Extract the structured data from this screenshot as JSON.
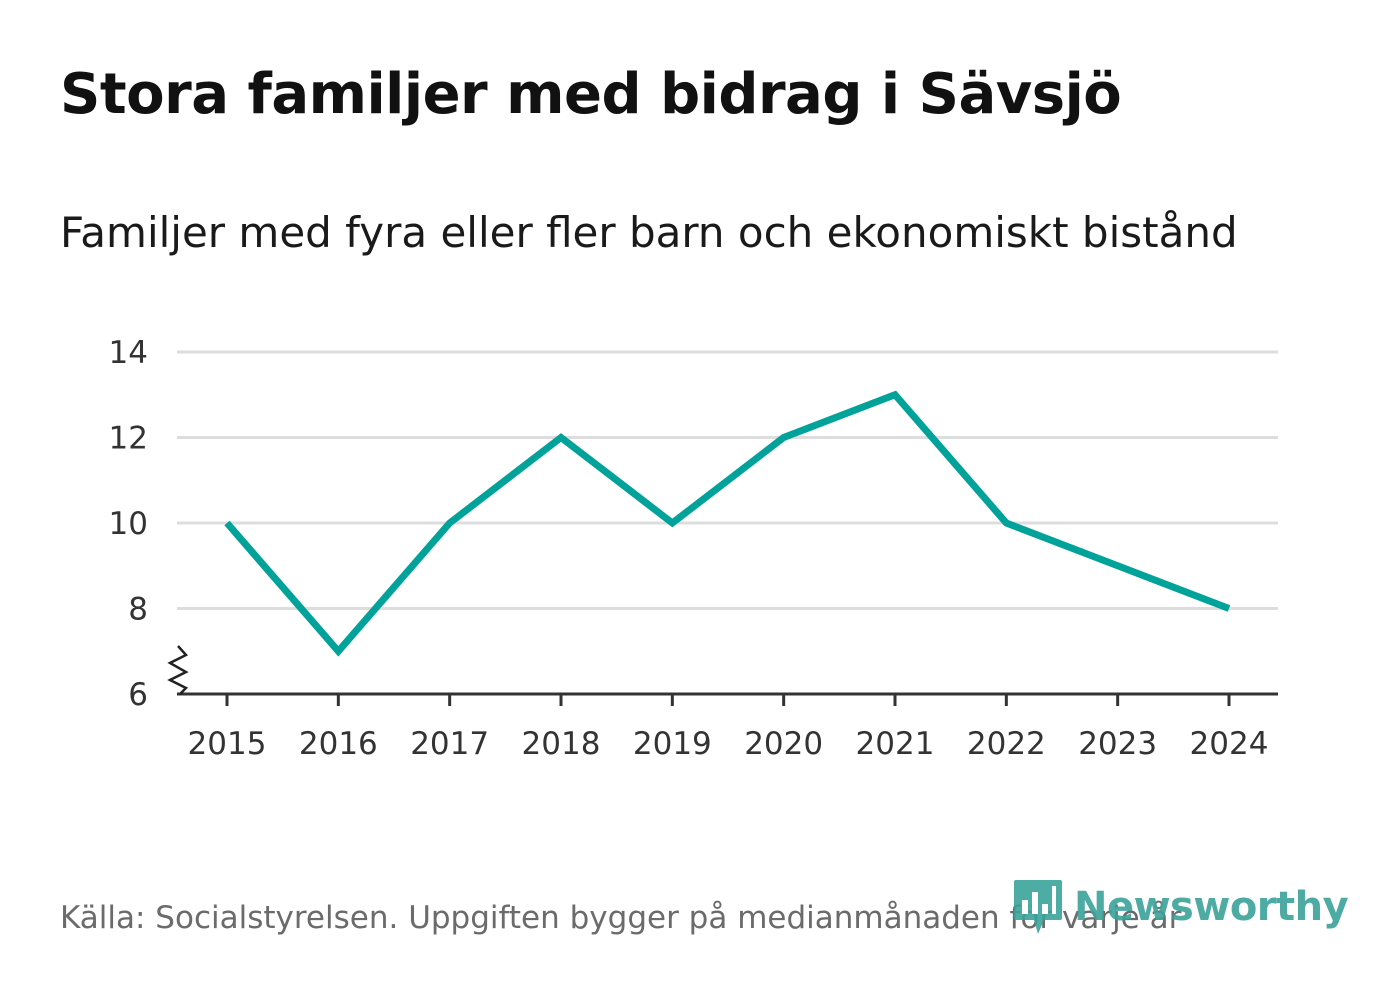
{
  "title": "Stora familjer med bidrag i Sävsjö",
  "subtitle": "Familjer med fyra eller fler barn och ekonomiskt bistånd",
  "source": "Källa: Socialstyrelsen. Uppgiften bygger på medianmånaden för varje år",
  "logo": {
    "text": "Newsworthy",
    "icon": "bar-chart-icon",
    "color": "#3aa39a"
  },
  "chart_data": {
    "type": "line",
    "x": [
      "2015",
      "2016",
      "2017",
      "2018",
      "2019",
      "2020",
      "2021",
      "2022",
      "2023",
      "2024"
    ],
    "series": [
      {
        "values": [
          10,
          7,
          10,
          12,
          10,
          12,
          13,
          10,
          9,
          8
        ],
        "color": "#00a29a"
      }
    ],
    "y_ticks": [
      6,
      8,
      10,
      12,
      14
    ],
    "ylim": [
      6,
      14
    ],
    "y_axis_break": true,
    "grid": true,
    "gridline_color": "#dddddd"
  }
}
